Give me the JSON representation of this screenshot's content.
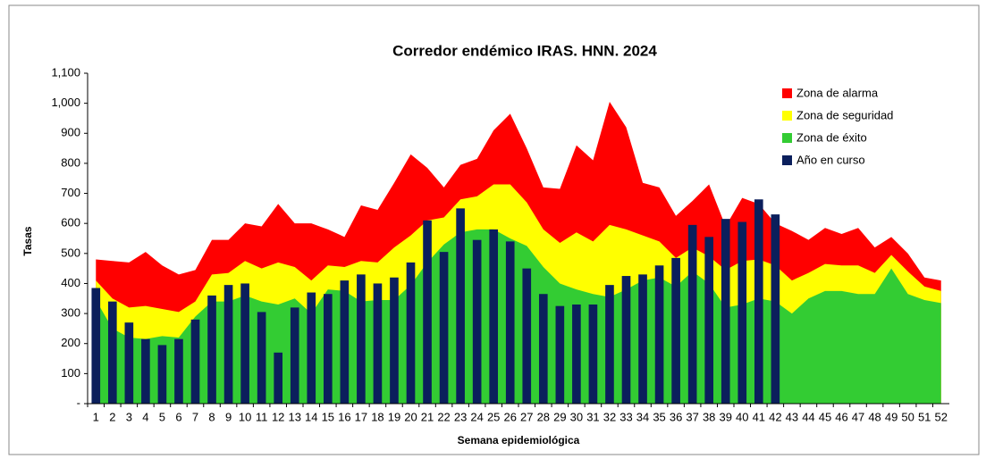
{
  "chart_data": {
    "type": "area",
    "title": "Corredor endémico IRAS. HNN. 2024",
    "x_label": "Semana epidemiológica",
    "y_label": "Tasas",
    "categories": [
      1,
      2,
      3,
      4,
      5,
      6,
      7,
      8,
      9,
      10,
      11,
      12,
      13,
      14,
      15,
      16,
      17,
      18,
      19,
      20,
      21,
      22,
      23,
      24,
      25,
      26,
      27,
      28,
      29,
      30,
      31,
      32,
      33,
      34,
      35,
      36,
      37,
      38,
      39,
      40,
      41,
      42,
      43,
      44,
      45,
      46,
      47,
      48,
      49,
      50,
      51,
      52
    ],
    "ylim": [
      0,
      1100
    ],
    "yticks": [
      {
        "value": 0,
        "label": "-"
      },
      100,
      200,
      300,
      400,
      500,
      600,
      700,
      800,
      900,
      {
        "value": 1000,
        "label": "1,000"
      },
      {
        "value": 1100,
        "label": "1,100"
      }
    ],
    "legend": "upper right",
    "series": [
      {
        "name": "Zona de alarma",
        "type": "area",
        "color": "#ff0000",
        "values": [
          480,
          475,
          470,
          505,
          460,
          430,
          445,
          545,
          545,
          600,
          590,
          665,
          600,
          600,
          580,
          555,
          660,
          645,
          735,
          830,
          785,
          720,
          795,
          815,
          910,
          965,
          850,
          720,
          715,
          860,
          810,
          1005,
          920,
          735,
          720,
          625,
          675,
          730,
          590,
          685,
          665,
          600,
          575,
          545,
          585,
          565,
          585,
          520,
          555,
          500,
          420,
          410
        ]
      },
      {
        "name": "Zona de seguridad",
        "type": "area",
        "color": "#ffff00",
        "values": [
          410,
          350,
          320,
          325,
          315,
          305,
          340,
          430,
          435,
          475,
          450,
          470,
          455,
          410,
          460,
          455,
          475,
          470,
          520,
          560,
          610,
          620,
          680,
          690,
          730,
          730,
          670,
          580,
          535,
          570,
          540,
          595,
          580,
          560,
          540,
          485,
          520,
          490,
          445,
          475,
          480,
          460,
          410,
          435,
          465,
          460,
          460,
          435,
          495,
          440,
          390,
          375
        ]
      },
      {
        "name": "Zona de éxito",
        "type": "area",
        "color": "#33cc33",
        "values": [
          345,
          250,
          220,
          215,
          225,
          220,
          290,
          340,
          340,
          360,
          340,
          330,
          350,
          300,
          380,
          375,
          340,
          345,
          345,
          395,
          470,
          530,
          570,
          580,
          580,
          550,
          525,
          455,
          400,
          380,
          365,
          355,
          380,
          410,
          420,
          390,
          440,
          400,
          320,
          330,
          350,
          340,
          300,
          350,
          375,
          375,
          365,
          365,
          450,
          365,
          345,
          335
        ]
      },
      {
        "name": "Año en curso",
        "type": "bar",
        "color": "#0b1f5c",
        "values": [
          385,
          340,
          270,
          215,
          195,
          215,
          280,
          360,
          395,
          400,
          305,
          170,
          320,
          370,
          365,
          410,
          430,
          400,
          420,
          470,
          610,
          505,
          650,
          545,
          580,
          540,
          450,
          365,
          325,
          330,
          330,
          395,
          425,
          430,
          460,
          485,
          595,
          555,
          615,
          605,
          680,
          630,
          null,
          null,
          null,
          null,
          null,
          null,
          null,
          null,
          null,
          null
        ]
      }
    ]
  }
}
